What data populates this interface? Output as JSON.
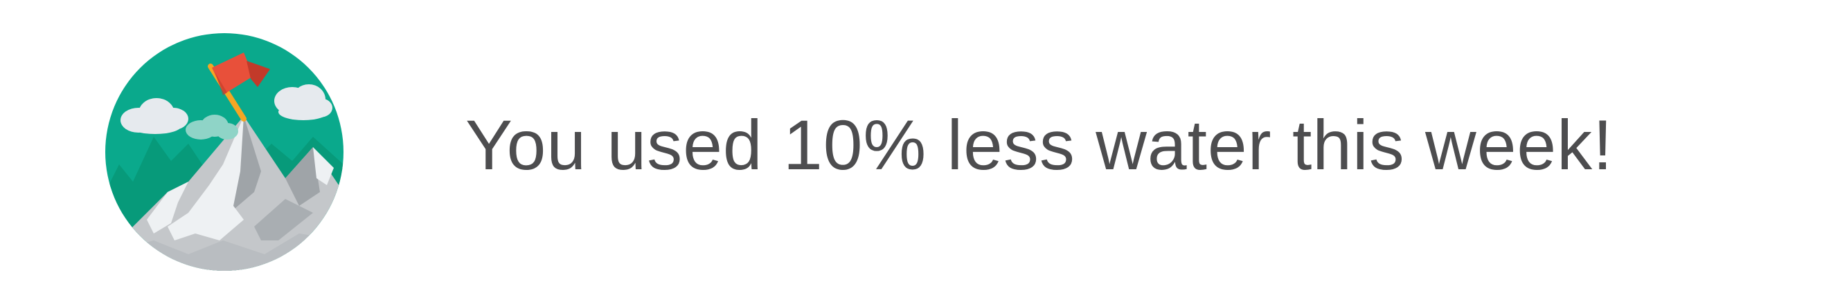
{
  "notification": {
    "message": "You used 10% less water this week!"
  },
  "badge": {
    "icon": "mountain-summit-flag-icon"
  },
  "colors": {
    "sky": "#0aa98c",
    "hills": "#079a7a",
    "mountain": "#c4c7ca",
    "snow": "#eef1f3",
    "flag": "#e8503a",
    "flag_shadow": "#c23a2a",
    "pole": "#f5a623",
    "text": "#4d4d4f"
  }
}
